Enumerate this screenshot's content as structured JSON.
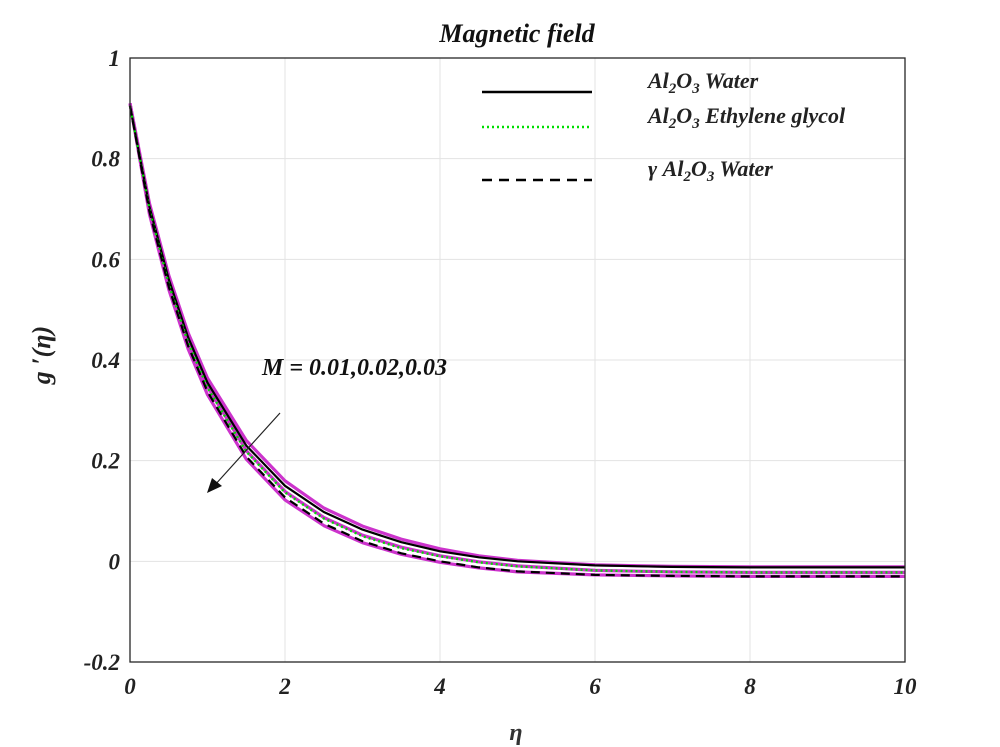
{
  "chart_data": {
    "type": "line",
    "title": "Magnetic field",
    "xlabel": "η",
    "ylabel": "g ′(η)",
    "xlim": [
      0,
      10
    ],
    "ylim": [
      -0.2,
      1
    ],
    "xticks": [
      "0",
      "2",
      "4",
      "6",
      "8",
      "10"
    ],
    "yticks": [
      "-0.2",
      "0",
      "0.2",
      "0.4",
      "0.6",
      "0.8",
      "1"
    ],
    "grid": true,
    "legend_position": "top-right",
    "legend": [
      {
        "label_parts": [
          "Al",
          "2",
          "O",
          "3",
          "  Water"
        ],
        "style": "solid",
        "color": "#000000"
      },
      {
        "label_parts": [
          "Al",
          "2",
          "O",
          "3",
          "  Ethylene glycol"
        ],
        "style": "dotted",
        "color": "#00dd00"
      },
      {
        "label_parts": [
          "γ Al",
          "2",
          "O",
          "3",
          " Water"
        ],
        "style": "dashed",
        "color": "#000000"
      }
    ],
    "annotation": "M = 0.01,0.02,0.03",
    "x": [
      0,
      0.25,
      0.5,
      0.75,
      1,
      1.5,
      2,
      2.5,
      3,
      3.5,
      4,
      4.5,
      5,
      6,
      7,
      8,
      9,
      10
    ],
    "series": [
      {
        "style": "solid",
        "color": "#000000",
        "values": [
          0.905,
          0.705,
          0.56,
          0.445,
          0.355,
          0.23,
          0.15,
          0.098,
          0.063,
          0.038,
          0.02,
          0.008,
          0.0,
          -0.008,
          -0.011,
          -0.012,
          -0.012,
          -0.012
        ]
      },
      {
        "style": "dotted",
        "color": "#00dd00",
        "values": [
          0.905,
          0.7,
          0.55,
          0.435,
          0.345,
          0.218,
          0.137,
          0.085,
          0.05,
          0.026,
          0.01,
          -0.002,
          -0.01,
          -0.018,
          -0.021,
          -0.022,
          -0.022,
          -0.022
        ]
      },
      {
        "style": "dashed",
        "color": "#000000",
        "values": [
          0.905,
          0.695,
          0.545,
          0.428,
          0.337,
          0.208,
          0.127,
          0.075,
          0.04,
          0.016,
          0.0,
          -0.012,
          -0.02,
          -0.027,
          -0.029,
          -0.03,
          -0.03,
          -0.03
        ]
      },
      {
        "style": "solid",
        "color": "#cc33cc",
        "values": [
          0.91,
          0.712,
          0.568,
          0.454,
          0.364,
          0.24,
          0.16,
          0.106,
          0.07,
          0.044,
          0.025,
          0.011,
          0.002,
          -0.007,
          -0.01,
          -0.011,
          -0.011,
          -0.011
        ]
      },
      {
        "style": "solid",
        "color": "#cc33cc",
        "values": [
          0.91,
          0.7,
          0.552,
          0.437,
          0.347,
          0.22,
          0.139,
          0.087,
          0.052,
          0.028,
          0.011,
          -0.001,
          -0.009,
          -0.018,
          -0.021,
          -0.022,
          -0.022,
          -0.022
        ]
      },
      {
        "style": "solid",
        "color": "#cc33cc",
        "values": [
          0.91,
          0.69,
          0.54,
          0.422,
          0.331,
          0.203,
          0.122,
          0.071,
          0.037,
          0.014,
          -0.002,
          -0.013,
          -0.021,
          -0.027,
          -0.029,
          -0.03,
          -0.03,
          -0.03
        ]
      }
    ]
  }
}
